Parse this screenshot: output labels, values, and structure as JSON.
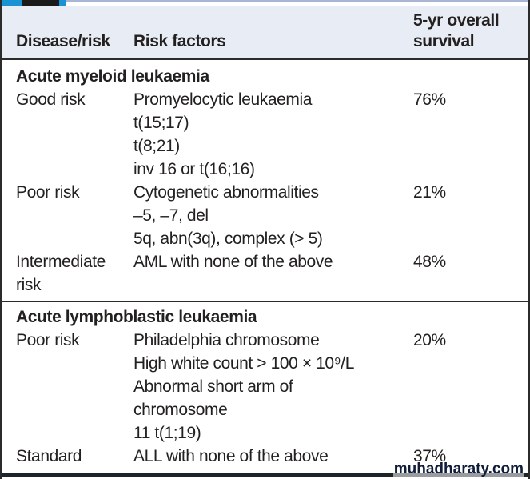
{
  "page": {
    "watermark": "muhadharaty.com"
  },
  "colors": {
    "accent_blue": "#1a93d4",
    "strip_black": "#1b1b1b",
    "strip_lavender": "#a8b5d3",
    "header_bg": "#e8ecf4",
    "border_dark": "#2b2b2b",
    "text": "#232020",
    "watermark_text": "#101c3a"
  },
  "table": {
    "columns": [
      {
        "label": "Disease/risk"
      },
      {
        "label": "Risk factors"
      },
      {
        "label": "5-yr overall survival"
      }
    ],
    "sections": [
      {
        "title": "Acute myeloid leukaemia",
        "rows": [
          {
            "risk": "Good risk",
            "factors": [
              "Promyelocytic leukaemia",
              "t(15;17)",
              "t(8;21)",
              "inv 16 or t(16;16)"
            ],
            "survival": "76%"
          },
          {
            "risk": "Poor risk",
            "factors": [
              "Cytogenetic abnormalities",
              "–5, –7, del",
              "5q, abn(3q), complex (> 5)"
            ],
            "survival": "21%"
          },
          {
            "risk": "Intermediate risk",
            "factors": [
              "AML with none of the above"
            ],
            "survival": "48%"
          }
        ]
      },
      {
        "title": "Acute lymphoblastic leukaemia",
        "rows": [
          {
            "risk": "Poor risk",
            "factors": [
              "Philadelphia chromosome",
              "High white count > 100 × 10⁹/L",
              "Abnormal short arm of",
              "chromosome",
              "11 t(1;19)"
            ],
            "survival": "20%"
          },
          {
            "risk": "Standard",
            "factors": [
              "ALL with none of the above"
            ],
            "survival": "37%"
          }
        ]
      }
    ]
  }
}
